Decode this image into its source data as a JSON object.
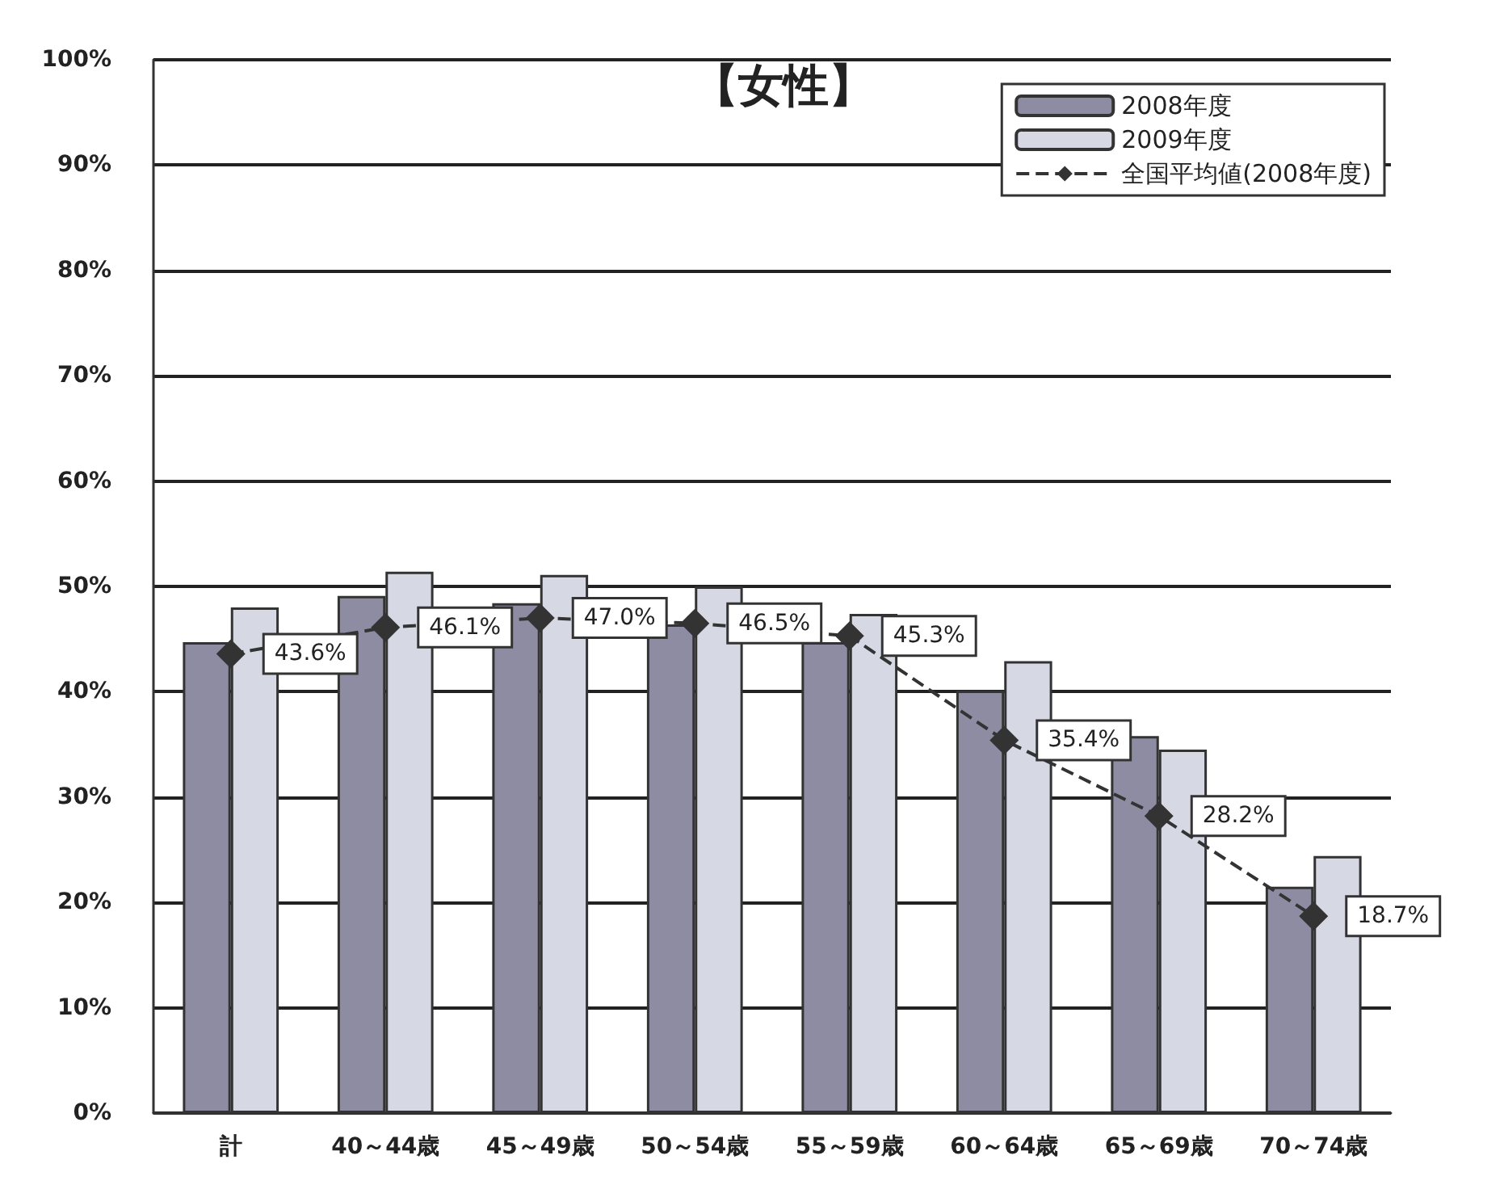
{
  "chart_data": {
    "type": "bar",
    "title": "【女性】",
    "categories": [
      "計",
      "40～44歳",
      "45～49歳",
      "50～54歳",
      "55～59歳",
      "60～64歳",
      "65～69歳",
      "70～74歳"
    ],
    "series": [
      {
        "name": "2008年度",
        "color": "#8e8ca2",
        "values": [
          44.7,
          49.1,
          48.4,
          46.4,
          44.7,
          40.1,
          35.8,
          21.5
        ]
      },
      {
        "name": "2009年度",
        "color": "#d6d8e4",
        "values": [
          48.0,
          51.4,
          51.1,
          50.0,
          47.4,
          42.9,
          34.5,
          24.4
        ]
      },
      {
        "name": "全国平均値(2008年度)",
        "type": "line",
        "color": "#333333",
        "marker": "diamond",
        "line_style": "dashed",
        "value_labels": [
          "43.6%",
          "46.1%",
          "47.0%",
          "46.5%",
          "45.3%",
          "35.4%",
          "28.2%",
          "18.7%"
        ],
        "values": [
          43.6,
          46.1,
          47.0,
          46.5,
          45.3,
          35.4,
          28.2,
          18.7
        ]
      }
    ],
    "ylim": [
      0,
      100
    ],
    "yticks": [
      {
        "value": 0,
        "label": "0%"
      },
      {
        "value": 10,
        "label": "10%"
      },
      {
        "value": 20,
        "label": "20%"
      },
      {
        "value": 30,
        "label": "30%"
      },
      {
        "value": 40,
        "label": "40%"
      },
      {
        "value": 50,
        "label": "50%"
      },
      {
        "value": 60,
        "label": "60%"
      },
      {
        "value": 70,
        "label": "70%"
      },
      {
        "value": 80,
        "label": "80%"
      },
      {
        "value": 90,
        "label": "90%"
      },
      {
        "value": 100,
        "label": "100%"
      }
    ],
    "grid": "y",
    "legend": "top right"
  }
}
